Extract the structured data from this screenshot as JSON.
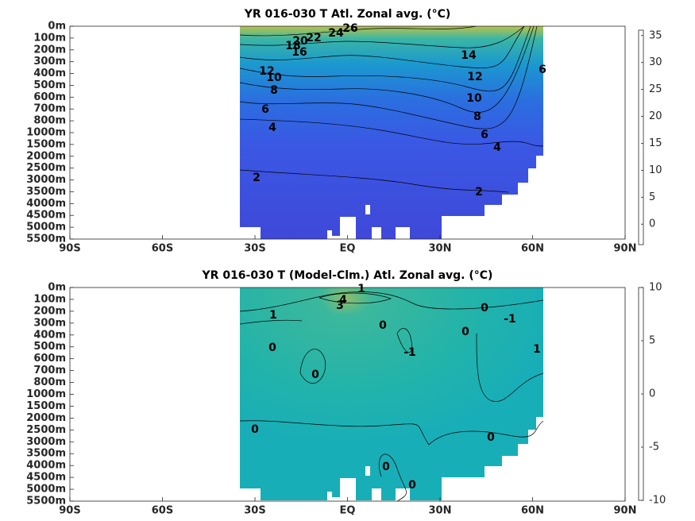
{
  "chart_data": [
    {
      "type": "contour",
      "title": "YR 016-030 T Atl. Zonal avg. (°C)",
      "colormap": "parula",
      "xlim": [
        -90,
        90
      ],
      "xticks": [
        {
          "value": -90,
          "label": "90S"
        },
        {
          "value": -60,
          "label": "60S"
        },
        {
          "value": -30,
          "label": "30S"
        },
        {
          "value": 0,
          "label": "EQ"
        },
        {
          "value": 30,
          "label": "30N"
        },
        {
          "value": 60,
          "label": "60N"
        },
        {
          "value": 90,
          "label": "90N"
        }
      ],
      "y_categories": [
        "0m",
        "100m",
        "200m",
        "300m",
        "400m",
        "500m",
        "600m",
        "700m",
        "800m",
        "1000m",
        "1500m",
        "2000m",
        "2500m",
        "3000m",
        "3500m",
        "4000m",
        "4500m",
        "5000m",
        "5500m"
      ],
      "clim": [
        -3.8,
        36
      ],
      "cticks": [
        0,
        5,
        10,
        15,
        20,
        25,
        30,
        35
      ],
      "contour_labels": [
        "26",
        "24",
        "22",
        "20",
        "18",
        "16",
        "14",
        "12",
        "12",
        "10",
        "8",
        "10",
        "8",
        "6",
        "6",
        "4",
        "4",
        "2",
        "2",
        "6"
      ]
    },
    {
      "type": "contour",
      "title": "YR 016-030 T (Model-Clm.) Atl. Zonal avg. (°C)",
      "colormap": "parula",
      "xlim": [
        -90,
        90
      ],
      "xticks": [
        {
          "value": -90,
          "label": "90S"
        },
        {
          "value": -60,
          "label": "60S"
        },
        {
          "value": -30,
          "label": "30S"
        },
        {
          "value": 0,
          "label": "EQ"
        },
        {
          "value": 30,
          "label": "30N"
        },
        {
          "value": 60,
          "label": "60N"
        },
        {
          "value": 90,
          "label": "90N"
        }
      ],
      "y_categories": [
        "0m",
        "100m",
        "200m",
        "300m",
        "400m",
        "500m",
        "600m",
        "700m",
        "800m",
        "1000m",
        "1500m",
        "2000m",
        "2500m",
        "3000m",
        "3500m",
        "4000m",
        "4500m",
        "5000m",
        "5500m"
      ],
      "clim": [
        -10,
        10
      ],
      "cticks": [
        -10,
        -5,
        0,
        5,
        10
      ],
      "contour_labels": [
        "1",
        "4",
        "3",
        "1",
        "0",
        "0",
        "-1",
        "0",
        "-1",
        "0",
        "1",
        "0",
        "0",
        "0",
        "0",
        "0"
      ]
    }
  ]
}
